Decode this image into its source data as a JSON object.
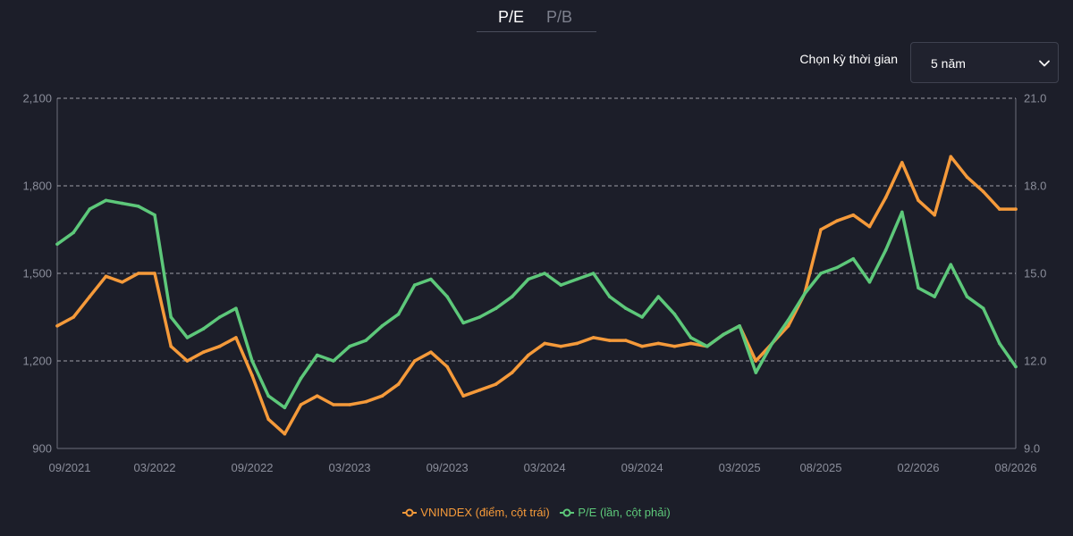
{
  "tabs": [
    {
      "label": "P/E",
      "active": true
    },
    {
      "label": "P/B",
      "active": false
    }
  ],
  "period": {
    "label": "Chọn kỳ thời gian",
    "selected": "5 năm"
  },
  "chart_data": {
    "type": "line",
    "x_ticks": [
      "09/2021",
      "03/2022",
      "09/2022",
      "03/2023",
      "09/2023",
      "03/2024",
      "09/2024",
      "03/2025",
      "08/2025",
      "02/2026",
      "08/2026"
    ],
    "left_axis": {
      "ticks": [
        "900",
        "1,200",
        "1,500",
        "1,800",
        "2,100"
      ],
      "ylim": [
        900,
        2100
      ]
    },
    "right_axis": {
      "ticks": [
        "9.0",
        "12.0",
        "15.0",
        "18.0",
        "21.0"
      ],
      "ylim": [
        9,
        21
      ]
    },
    "grid": true,
    "legend_position": "bottom",
    "series": [
      {
        "name": "VNINDEX (điểm, cột trái)",
        "axis": "left",
        "color": "#f59a3a",
        "x": [
          "09/2021",
          "10/2021",
          "11/2021",
          "12/2021",
          "01/2022",
          "02/2022",
          "03/2022",
          "04/2022",
          "05/2022",
          "06/2022",
          "07/2022",
          "08/2022",
          "09/2022",
          "10/2022",
          "11/2022",
          "12/2022",
          "01/2023",
          "02/2023",
          "03/2023",
          "04/2023",
          "05/2023",
          "06/2023",
          "07/2023",
          "08/2023",
          "09/2023",
          "10/2023",
          "11/2023",
          "12/2023",
          "01/2024",
          "02/2024",
          "03/2024",
          "04/2024",
          "05/2024",
          "06/2024",
          "07/2024",
          "08/2024",
          "09/2024",
          "10/2024",
          "11/2024",
          "12/2024",
          "01/2025",
          "02/2025",
          "03/2025",
          "04/2025",
          "05/2025",
          "06/2025",
          "07/2025",
          "08/2025",
          "09/2025",
          "10/2025",
          "11/2025",
          "12/2025",
          "01/2026",
          "02/2026",
          "03/2026",
          "04/2026",
          "05/2026",
          "06/2026",
          "07/2026",
          "08/2026"
        ],
        "values": [
          1320,
          1350,
          1420,
          1490,
          1470,
          1500,
          1500,
          1250,
          1200,
          1230,
          1250,
          1280,
          1150,
          1000,
          950,
          1050,
          1080,
          1050,
          1050,
          1060,
          1080,
          1120,
          1200,
          1230,
          1180,
          1080,
          1100,
          1120,
          1160,
          1220,
          1260,
          1250,
          1260,
          1280,
          1270,
          1270,
          1250,
          1260,
          1250,
          1260,
          1250,
          1290,
          1320,
          1200,
          1260,
          1320,
          1430,
          1650,
          1680,
          1700,
          1660,
          1760,
          1880,
          1750,
          1700,
          1900,
          1830,
          1780,
          1720,
          1720
        ]
      },
      {
        "name": "P/E (lần, cột phải)",
        "axis": "right",
        "color": "#5dc87a",
        "x": [
          "09/2021",
          "10/2021",
          "11/2021",
          "12/2021",
          "01/2022",
          "02/2022",
          "03/2022",
          "04/2022",
          "05/2022",
          "06/2022",
          "07/2022",
          "08/2022",
          "09/2022",
          "10/2022",
          "11/2022",
          "12/2022",
          "01/2023",
          "02/2023",
          "03/2023",
          "04/2023",
          "05/2023",
          "06/2023",
          "07/2023",
          "08/2023",
          "09/2023",
          "10/2023",
          "11/2023",
          "12/2023",
          "01/2024",
          "02/2024",
          "03/2024",
          "04/2024",
          "05/2024",
          "06/2024",
          "07/2024",
          "08/2024",
          "09/2024",
          "10/2024",
          "11/2024",
          "12/2024",
          "01/2025",
          "02/2025",
          "03/2025",
          "04/2025",
          "05/2025",
          "06/2025",
          "07/2025",
          "08/2025",
          "09/2025",
          "10/2025",
          "11/2025",
          "12/2025",
          "01/2026",
          "02/2026",
          "03/2026",
          "04/2026",
          "05/2026",
          "06/2026",
          "07/2026",
          "08/2026"
        ],
        "values": [
          16.0,
          16.4,
          17.2,
          17.5,
          17.4,
          17.3,
          17.0,
          13.5,
          12.8,
          13.1,
          13.5,
          13.8,
          12.0,
          10.8,
          10.4,
          11.4,
          12.2,
          12.0,
          12.5,
          12.7,
          13.2,
          13.6,
          14.6,
          14.8,
          14.2,
          13.3,
          13.5,
          13.8,
          14.2,
          14.8,
          15.0,
          14.6,
          14.8,
          15.0,
          14.2,
          13.8,
          13.5,
          14.2,
          13.6,
          12.8,
          12.5,
          12.9,
          13.2,
          11.6,
          12.6,
          13.4,
          14.3,
          15.0,
          15.2,
          15.5,
          14.7,
          15.8,
          17.1,
          14.5,
          14.2,
          15.3,
          14.2,
          13.8,
          12.6,
          11.8
        ]
      }
    ]
  }
}
